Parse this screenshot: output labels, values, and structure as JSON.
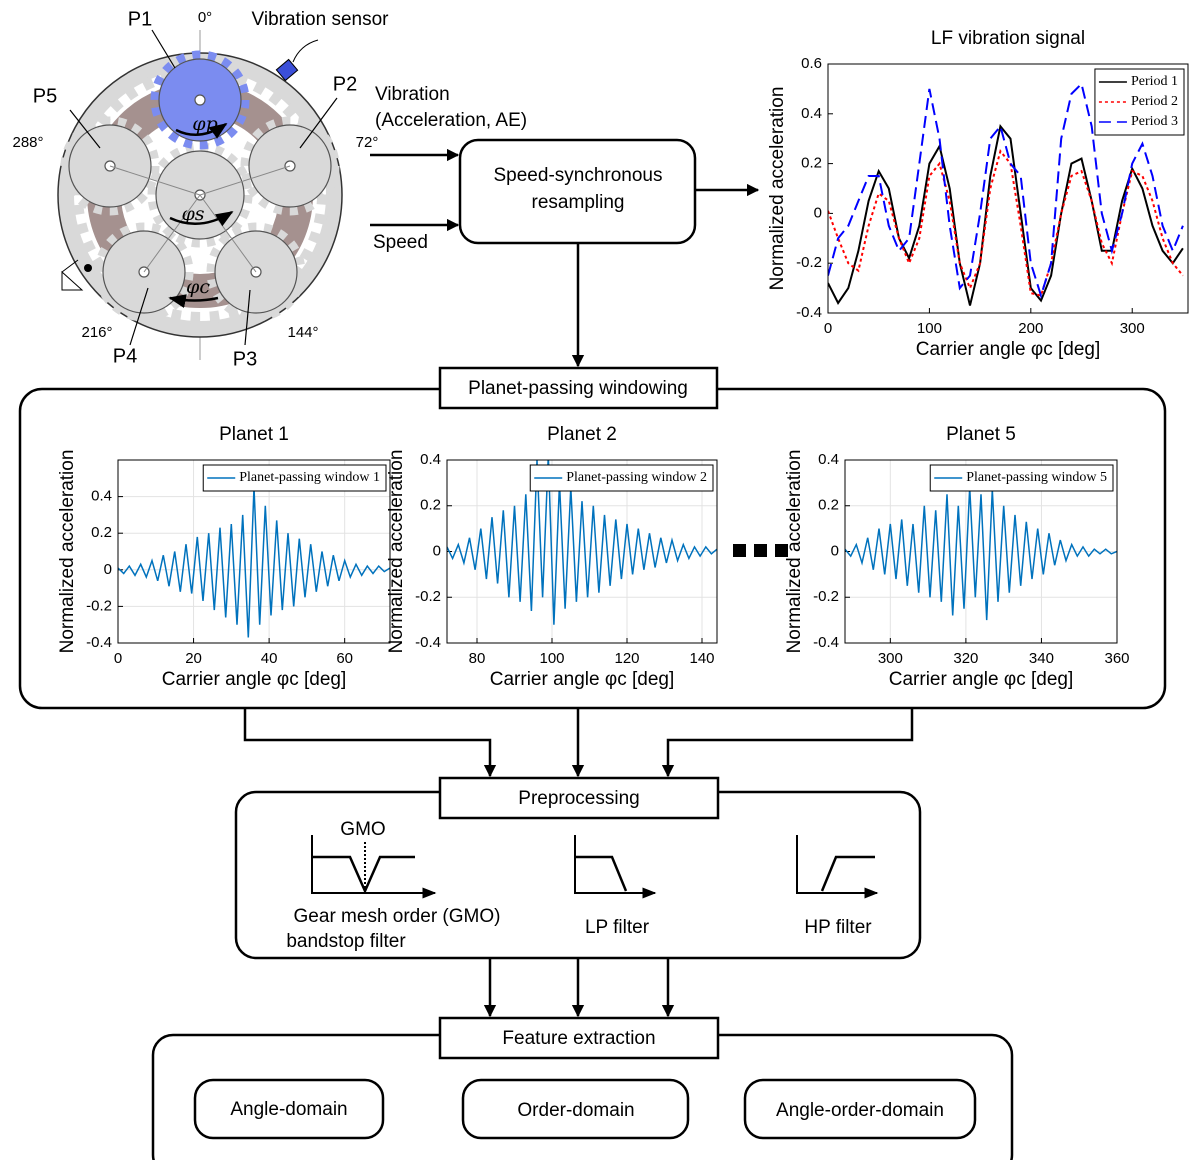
{
  "diagram": {
    "gear": {
      "p1": "P1",
      "p2": "P2",
      "p3": "P3",
      "p4": "P4",
      "p5": "P5",
      "a0": "0°",
      "a72": "72°",
      "a144": "144°",
      "a216": "216°",
      "a288": "288°",
      "sensor": "Vibration sensor",
      "phi_p": "φp",
      "phi_s": "φs",
      "phi_c": "φc"
    },
    "inputs": [
      "Vibration",
      "(Acceleration, AE)"
    ],
    "speed": "Speed",
    "resampling": [
      "Speed-synchronous",
      "resampling"
    ],
    "windowing": "Planet-passing windowing",
    "preprocessing": {
      "title": "Preprocessing",
      "gmo": "GMO",
      "bandstop": [
        "Gear mesh order (GMO)",
        "bandstop filter"
      ],
      "lp": "LP filter",
      "hp": "HP filter"
    },
    "feature": {
      "title": "Feature extraction",
      "boxes": [
        "Angle-domain",
        "Order-domain",
        "Angle-order-domain"
      ]
    }
  },
  "chart_data": [
    {
      "type": "line",
      "title": "LF vibration signal",
      "xlabel": "Carrier angle φc [deg]",
      "ylabel": "Normalized acceleration",
      "x": [
        0,
        10,
        20,
        30,
        40,
        50,
        60,
        70,
        80,
        90,
        100,
        110,
        120,
        130,
        140,
        150,
        160,
        170,
        180,
        190,
        200,
        210,
        220,
        230,
        240,
        250,
        260,
        270,
        280,
        290,
        300,
        310,
        320,
        330,
        340,
        350
      ],
      "series": [
        {
          "name": "Period 1",
          "color": "#000000",
          "dash": "solid",
          "values": [
            -0.28,
            -0.36,
            -0.3,
            -0.15,
            0.05,
            0.17,
            0.1,
            -0.1,
            -0.18,
            -0.05,
            0.2,
            0.27,
            0.1,
            -0.2,
            -0.37,
            -0.2,
            0.15,
            0.35,
            0.3,
            0.0,
            -0.3,
            -0.35,
            -0.25,
            0.0,
            0.2,
            0.22,
            0.05,
            -0.15,
            -0.15,
            0.05,
            0.18,
            0.1,
            -0.05,
            -0.15,
            -0.2,
            -0.14
          ]
        },
        {
          "name": "Period 2",
          "color": "#ff0000",
          "dash": "dotted",
          "values": [
            0.01,
            -0.1,
            -0.2,
            -0.23,
            -0.05,
            0.08,
            0.05,
            -0.1,
            -0.2,
            -0.1,
            0.15,
            0.2,
            0.05,
            -0.2,
            -0.3,
            -0.2,
            0.1,
            0.25,
            0.2,
            -0.05,
            -0.32,
            -0.33,
            -0.2,
            0.0,
            0.15,
            0.17,
            0.05,
            -0.12,
            -0.2,
            0.0,
            0.17,
            0.15,
            0.05,
            -0.1,
            -0.2,
            -0.25
          ]
        },
        {
          "name": "Period 3",
          "color": "#0000ff",
          "dash": "dashed",
          "values": [
            -0.25,
            -0.1,
            -0.05,
            0.05,
            0.15,
            0.15,
            -0.05,
            -0.15,
            -0.1,
            0.2,
            0.5,
            0.3,
            -0.05,
            -0.3,
            -0.25,
            0.0,
            0.3,
            0.35,
            0.2,
            0.15,
            -0.2,
            -0.33,
            -0.2,
            0.3,
            0.48,
            0.52,
            0.35,
            0.0,
            -0.15,
            0.0,
            0.2,
            0.28,
            0.15,
            -0.05,
            -0.15,
            -0.05
          ]
        }
      ],
      "xlim": [
        0,
        355
      ],
      "ylim": [
        -0.4,
        0.6
      ],
      "xticks": [
        0,
        100,
        200,
        300
      ],
      "yticks": [
        -0.4,
        -0.2,
        0,
        0.2,
        0.4,
        0.6
      ],
      "grid": false,
      "legend": "upper right"
    },
    {
      "type": "line",
      "title": "Planet 1",
      "xlabel": "Carrier angle φc [deg]",
      "ylabel": "Normalized acceleration",
      "x": [
        0,
        1.5,
        3,
        4.5,
        6,
        7.5,
        9,
        10.5,
        12,
        13.5,
        15,
        16.5,
        18,
        19.5,
        21,
        22.5,
        24,
        25.5,
        27,
        28.5,
        30,
        31.5,
        33,
        34.5,
        36,
        37.5,
        39,
        40.5,
        42,
        43.5,
        45,
        46.5,
        48,
        49.5,
        51,
        52.5,
        54,
        55.5,
        57,
        58.5,
        60,
        61.5,
        63,
        64.5,
        66,
        67.5,
        69,
        70.5,
        72
      ],
      "series": [
        {
          "name": "Planet-passing window 1",
          "color": "#0072bd",
          "dash": "solid",
          "values": [
            0.01,
            -0.02,
            0.02,
            -0.03,
            0.03,
            -0.04,
            0.05,
            -0.06,
            0.08,
            -0.09,
            0.1,
            -0.12,
            0.14,
            -0.13,
            0.18,
            -0.17,
            0.2,
            -0.22,
            0.23,
            -0.26,
            0.25,
            -0.3,
            0.3,
            -0.37,
            0.45,
            -0.3,
            0.35,
            -0.25,
            0.27,
            -0.22,
            0.2,
            -0.2,
            0.17,
            -0.15,
            0.14,
            -0.12,
            0.1,
            -0.09,
            0.08,
            -0.06,
            0.05,
            -0.04,
            0.03,
            -0.03,
            0.02,
            -0.02,
            0.02,
            -0.01,
            0.01
          ]
        }
      ],
      "xlim": [
        0,
        72
      ],
      "ylim": [
        -0.4,
        0.6
      ],
      "xticks": [
        0,
        20,
        40,
        60
      ],
      "yticks": [
        -0.4,
        -0.2,
        0,
        0.2,
        0.4
      ],
      "grid": true,
      "legend": "upper right"
    },
    {
      "type": "line",
      "title": "Planet 2",
      "xlabel": "Carrier angle φc [deg]",
      "ylabel": "Normalized acceleration",
      "x": [
        72,
        73.5,
        75,
        76.5,
        78,
        79.5,
        81,
        82.5,
        84,
        85.5,
        87,
        88.5,
        90,
        91.5,
        93,
        94.5,
        96,
        97.5,
        99,
        100.5,
        102,
        103.5,
        105,
        106.5,
        108,
        109.5,
        111,
        112.5,
        114,
        115.5,
        117,
        118.5,
        120,
        121.5,
        123,
        124.5,
        126,
        127.5,
        129,
        130.5,
        132,
        133.5,
        135,
        136.5,
        138,
        139.5,
        141,
        142.5,
        144
      ],
      "series": [
        {
          "name": "Planet-passing window 2",
          "color": "#0072bd",
          "dash": "solid",
          "values": [
            0.02,
            -0.03,
            0.03,
            -0.05,
            0.06,
            -0.08,
            0.1,
            -0.12,
            0.15,
            -0.14,
            0.18,
            -0.2,
            0.2,
            -0.22,
            0.25,
            -0.26,
            0.4,
            -0.2,
            0.42,
            -0.32,
            0.3,
            -0.25,
            0.28,
            -0.22,
            0.22,
            -0.2,
            0.2,
            -0.18,
            0.16,
            -0.15,
            0.14,
            -0.12,
            0.12,
            -0.1,
            0.1,
            -0.08,
            0.08,
            -0.07,
            0.06,
            -0.05,
            0.05,
            -0.04,
            0.03,
            -0.03,
            0.02,
            -0.02,
            0.02,
            -0.01,
            0.01
          ]
        }
      ],
      "xlim": [
        72,
        144
      ],
      "ylim": [
        -0.4,
        0.4
      ],
      "xticks": [
        80,
        100,
        120,
        140
      ],
      "yticks": [
        -0.4,
        -0.2,
        0,
        0.2,
        0.4
      ],
      "grid": true,
      "legend": "upper right"
    },
    {
      "type": "line",
      "title": "Planet 5",
      "xlabel": "Carrier angle φc [deg]",
      "ylabel": "Normalized acceleration",
      "x": [
        288,
        289.5,
        291,
        292.5,
        294,
        295.5,
        297,
        298.5,
        300,
        301.5,
        303,
        304.5,
        306,
        307.5,
        309,
        310.5,
        312,
        313.5,
        315,
        316.5,
        318,
        319.5,
        321,
        322.5,
        324,
        325.5,
        327,
        328.5,
        330,
        331.5,
        333,
        334.5,
        336,
        337.5,
        339,
        340.5,
        342,
        343.5,
        345,
        346.5,
        348,
        349.5,
        351,
        352.5,
        354,
        355.5,
        357,
        358.5,
        360
      ],
      "series": [
        {
          "name": "Planet-passing window 5",
          "color": "#0072bd",
          "dash": "solid",
          "values": [
            0.01,
            -0.02,
            0.03,
            -0.05,
            0.06,
            -0.08,
            0.1,
            -0.1,
            0.12,
            -0.12,
            0.14,
            -0.15,
            0.12,
            -0.18,
            0.2,
            -0.2,
            0.18,
            -0.22,
            0.25,
            -0.28,
            0.2,
            -0.25,
            0.28,
            -0.2,
            0.25,
            -0.3,
            0.27,
            -0.22,
            0.2,
            -0.18,
            0.16,
            -0.15,
            0.13,
            -0.12,
            0.1,
            -0.1,
            0.08,
            -0.06,
            0.05,
            -0.04,
            0.03,
            -0.02,
            0.02,
            -0.02,
            0.01,
            -0.01,
            0.01,
            -0.01,
            0
          ]
        }
      ],
      "xlim": [
        288,
        360
      ],
      "ylim": [
        -0.4,
        0.4
      ],
      "xticks": [
        300,
        320,
        340,
        360
      ],
      "yticks": [
        -0.4,
        -0.2,
        0,
        0.2,
        0.4
      ],
      "grid": true,
      "legend": "upper right"
    }
  ]
}
